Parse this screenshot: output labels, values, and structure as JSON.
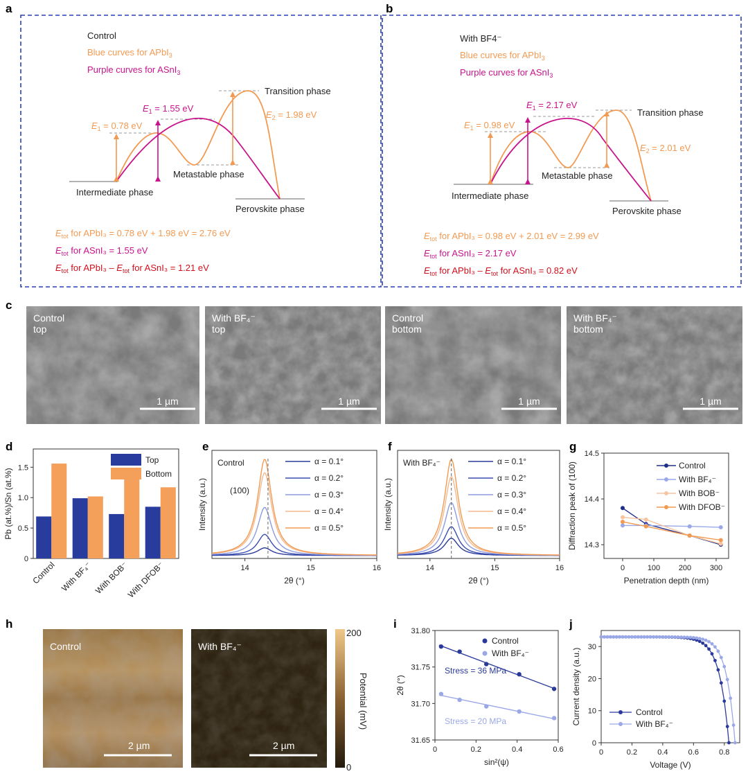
{
  "panels": {
    "a": "a",
    "b": "b",
    "c": "c",
    "d": "d",
    "e": "e",
    "f": "f",
    "g": "g",
    "h": "h",
    "i": "i",
    "j": "j"
  },
  "colors": {
    "orange": "#f29a52",
    "magenta": "#c8148c",
    "red": "#d0101c",
    "navy": "#1e2d8c",
    "light_blue": "#9aa8e8",
    "box": "#2b3fb0"
  },
  "panel_a": {
    "title": "Control",
    "legend_blue": "Blue curves for APbI",
    "legend_purple": "Purple curves for ASnI",
    "e1_orange_sym": "E",
    "e1_orange_sub": "1",
    "e1_orange_val": " = 0.78 eV",
    "e1_magenta_sym": "E",
    "e1_magenta_sub": "1",
    "e1_magenta_val": " = 1.55 eV",
    "e2_sym": "E",
    "e2_sub": "2",
    "e2_val": " = 1.98 eV",
    "transition": "Transition phase",
    "metastable": "Metastable phase",
    "intermediate": "Intermediate phase",
    "perovskite": "Perovskite phase",
    "etot_apbi": " for APbI₃ = 0.78 eV + 1.98 eV = 2.76 eV",
    "etot_asni": " for ASnI₃ = 1.55 eV",
    "etot_diff_a": " for APbI₃ – ",
    "etot_diff_b": " for ASnI₃ = 1.21 eV"
  },
  "panel_b": {
    "title": "With BF4⁻",
    "legend_blue": "Blue curves for APbI",
    "legend_purple": "Purple curves for ASnI",
    "e1_orange_sym": "E",
    "e1_orange_sub": "1",
    "e1_orange_val": " = 0.98 eV",
    "e1_magenta_sym": "E",
    "e1_magenta_sub": "1",
    "e1_magenta_val": " = 2.17 eV",
    "e2_sym": "E",
    "e2_sub": "2",
    "e2_val": " = 2.01 eV",
    "transition": "Transition phase",
    "metastable": "Metastable phase",
    "intermediate": "Intermediate phase",
    "perovskite": "Perovskite phase",
    "etot_apbi": " for APbI₃ = 0.98 eV + 2.01 eV = 2.99 eV",
    "etot_asni": " for ASnI₃ = 2.17 eV",
    "etot_diff_a": " for APbI₃ – ",
    "etot_diff_b": " for ASnI₃ = 0.82 eV"
  },
  "etot": {
    "sym": "E",
    "sub": "tot"
  },
  "sub3": "3",
  "sem_images": [
    {
      "line1": "Control",
      "line2": "top",
      "scale": "1 µm"
    },
    {
      "line1": "With BF₄⁻",
      "line2": "top",
      "scale": "1 µm"
    },
    {
      "line1": "Control",
      "line2": "bottom",
      "scale": "1 µm"
    },
    {
      "line1": "With BF₄⁻",
      "line2": "bottom",
      "scale": "1 µm"
    }
  ],
  "kpfm": {
    "left_label": "Control",
    "right_label": "With BF₄⁻",
    "scale": "2 µm",
    "colorbar_label": "Potential (mV)",
    "colorbar_max": "200",
    "colorbar_min": "0"
  },
  "chart_data": [
    {
      "id": "d",
      "type": "bar",
      "categories": [
        "Control",
        "With BF₄⁻",
        "With BOB⁻",
        "With DFOB⁻"
      ],
      "series": [
        {
          "name": "Top",
          "values": [
            0.69,
            0.99,
            0.73,
            0.85
          ]
        },
        {
          "name": "Bottom",
          "values": [
            1.56,
            1.02,
            1.39,
            1.17
          ]
        }
      ],
      "ylabel": "Pb (at.%)/Sn (at.%)",
      "ylim": [
        0,
        1.8
      ],
      "yticks": [
        0,
        0.5,
        1.0,
        1.5
      ],
      "ytick_labels": [
        "0",
        "0.5",
        "1.0",
        "1.5"
      ]
    },
    {
      "id": "e",
      "type": "line",
      "annotation": "Control",
      "peak_label": "(100)",
      "xlabel": "2θ (°)",
      "ylabel": "Intensity (a.u.)",
      "xlim": [
        13.5,
        16
      ],
      "xticks": [
        14,
        15,
        16
      ],
      "series": [
        {
          "name": "α = 0.1°",
          "height": 0.08
        },
        {
          "name": "α = 0.2°",
          "height": 0.22
        },
        {
          "name": "α = 0.3°",
          "height": 0.5
        },
        {
          "name": "α = 0.4°",
          "height": 0.86
        },
        {
          "name": "α = 0.5°",
          "height": 1.0
        }
      ],
      "peak_center": 14.3,
      "dashed_line_x": 14.35
    },
    {
      "id": "f",
      "type": "line",
      "annotation": "With BF₄⁻",
      "xlabel": "2θ (°)",
      "ylabel": "Intensity (a.u.)",
      "xlim": [
        13.5,
        16
      ],
      "xticks": [
        14,
        15,
        16
      ],
      "series": [
        {
          "name": "α = 0.1°",
          "height": 0.18
        },
        {
          "name": "α = 0.2°",
          "height": 0.3
        },
        {
          "name": "α = 0.3°",
          "height": 0.55
        },
        {
          "name": "α = 0.4°",
          "height": 0.82
        },
        {
          "name": "α = 0.5°",
          "height": 1.0
        }
      ],
      "peak_center": 14.33,
      "dashed_line_x": 14.33
    },
    {
      "id": "g",
      "type": "line",
      "xlabel": "Penetration depth (nm)",
      "ylabel": "Diffraction peak of (100)",
      "xlim": [
        -60,
        340
      ],
      "ylim": [
        14.27,
        14.5
      ],
      "xticks": [
        0,
        100,
        200,
        300
      ],
      "yticks": [
        14.3,
        14.4,
        14.5
      ],
      "x": [
        0,
        75,
        215,
        315
      ],
      "series": [
        {
          "name": "Control",
          "values": [
            14.38,
            14.345,
            14.32,
            14.3
          ]
        },
        {
          "name": "With BF₄⁻",
          "values": [
            14.342,
            14.342,
            14.34,
            14.338
          ]
        },
        {
          "name": "With BOB⁻",
          "values": [
            14.36,
            14.355,
            14.32,
            14.302
          ]
        },
        {
          "name": "With DFOB⁻",
          "values": [
            14.35,
            14.34,
            14.32,
            14.31
          ]
        }
      ]
    },
    {
      "id": "i",
      "type": "scatter",
      "xlabel": "sin²(ψ)",
      "ylabel": "2θ (°)",
      "xlim": [
        0,
        0.6
      ],
      "ylim": [
        31.65,
        31.8
      ],
      "xticks": [
        0,
        0.2,
        0.4,
        0.6
      ],
      "yticks": [
        31.65,
        31.7,
        31.75,
        31.8
      ],
      "x": [
        0.03,
        0.12,
        0.25,
        0.41,
        0.58
      ],
      "series": [
        {
          "name": "Control",
          "values": [
            31.778,
            31.771,
            31.754,
            31.74,
            31.72
          ],
          "fit": "Stress = 36 MPa"
        },
        {
          "name": "With BF₄⁻",
          "values": [
            31.713,
            31.705,
            31.696,
            31.689,
            31.68
          ],
          "fit": "Stress = 20 MPa"
        }
      ]
    },
    {
      "id": "j",
      "type": "line",
      "xlabel": "Voltage (V)",
      "ylabel": "Current density (a.u.)",
      "xlim": [
        0,
        0.9
      ],
      "ylim": [
        0,
        35
      ],
      "xticks": [
        0,
        0.2,
        0.4,
        0.6,
        0.8
      ],
      "yticks": [
        0,
        10,
        20,
        30
      ],
      "series": [
        {
          "name": "Control",
          "jsc": 33,
          "voc": 0.83,
          "n": 0.06
        },
        {
          "name": "With BF₄⁻",
          "jsc": 33,
          "voc": 0.87,
          "n": 0.055
        }
      ]
    }
  ]
}
